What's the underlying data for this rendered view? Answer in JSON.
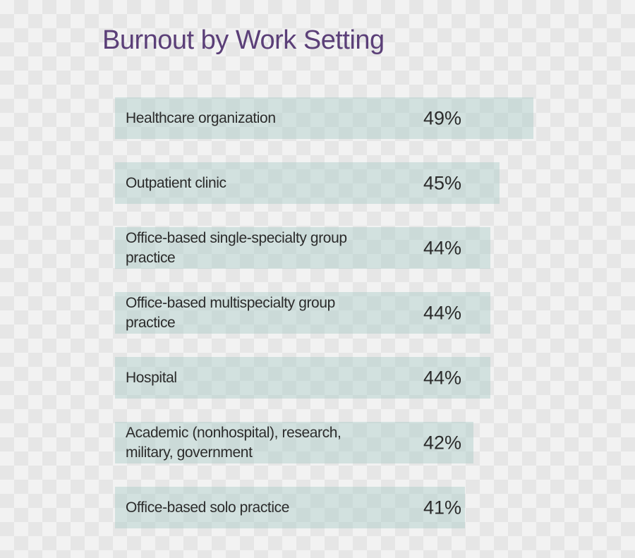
{
  "chart_data": {
    "type": "bar",
    "orientation": "horizontal",
    "title": "Burnout by Work Setting",
    "categories": [
      "Healthcare organization",
      "Outpatient clinic",
      "Office-based single-specialty group practice",
      "Office-based multispecialty group practice",
      "Hospital",
      "Academic (nonhospital), research, military, government",
      "Office-based solo practice"
    ],
    "values": [
      49,
      45,
      44,
      44,
      44,
      42,
      41
    ],
    "value_labels": [
      "49%",
      "45%",
      "44%",
      "44%",
      "44%",
      "42%",
      "41%"
    ],
    "unit": "%",
    "bar_color": "#aacdc8",
    "title_color": "#5b3f78",
    "grid": false,
    "legend": "none"
  }
}
